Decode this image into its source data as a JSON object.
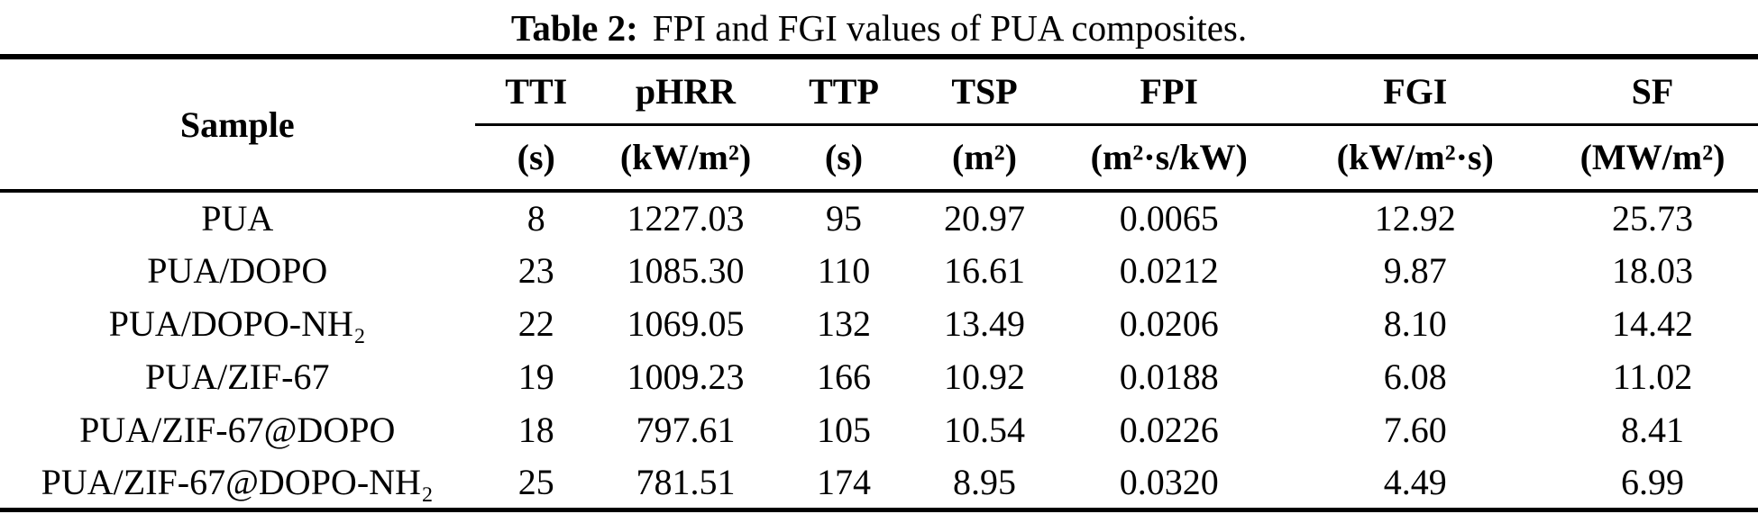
{
  "caption": {
    "label": "Table 2:",
    "text": "FPI and FGI values of PUA composites."
  },
  "table": {
    "sample_header": "Sample",
    "columns": [
      {
        "name": "TTI",
        "unit": "(s)"
      },
      {
        "name": "pHRR",
        "unit": "(kW/m²)"
      },
      {
        "name": "TTP",
        "unit": "(s)"
      },
      {
        "name": "TSP",
        "unit": "(m²)"
      },
      {
        "name": "FPI",
        "unit": "(m²·s/kW)"
      },
      {
        "name": "FGI",
        "unit": "(kW/m²·s)"
      },
      {
        "name": "SF",
        "unit": "(MW/m²)"
      }
    ],
    "rows": [
      {
        "sample": "PUA",
        "values": [
          "8",
          "1227.03",
          "95",
          "20.97",
          "0.0065",
          "12.92",
          "25.73"
        ]
      },
      {
        "sample": "PUA/DOPO",
        "values": [
          "23",
          "1085.30",
          "110",
          "16.61",
          "0.0212",
          "9.87",
          "18.03"
        ]
      },
      {
        "sample": "PUA/DOPO-NH₂",
        "values": [
          "22",
          "1069.05",
          "132",
          "13.49",
          "0.0206",
          "8.10",
          "14.42"
        ]
      },
      {
        "sample": "PUA/ZIF-67",
        "values": [
          "19",
          "1009.23",
          "166",
          "10.92",
          "0.0188",
          "6.08",
          "11.02"
        ]
      },
      {
        "sample": "PUA/ZIF-67@DOPO",
        "values": [
          "18",
          "797.61",
          "105",
          "10.54",
          "0.0226",
          "7.60",
          "8.41"
        ]
      },
      {
        "sample": "PUA/ZIF-67@DOPO-NH₂",
        "values": [
          "25",
          "781.51",
          "174",
          "8.95",
          "0.0320",
          "4.49",
          "6.99"
        ]
      }
    ]
  }
}
